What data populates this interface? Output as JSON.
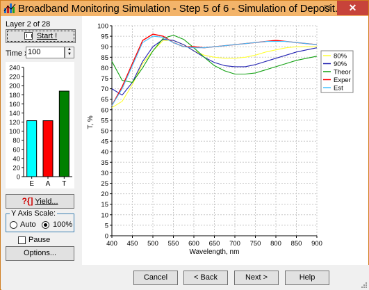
{
  "window": {
    "title": "Broadband Monitoring Simulation - Step 5 of 6 - Simulation of Deposit...",
    "minimize": "–",
    "maximize": "□",
    "close": "✕"
  },
  "left_panel": {
    "layer_label": "Layer 2 of 28",
    "start_button": "Start !",
    "time_label": "Time x",
    "time_value": "100",
    "yield_button": "Yield...",
    "y_axis_scale": {
      "legend": "Y Axis Scale:",
      "options": [
        "Auto",
        "100%"
      ],
      "selected": "100%"
    },
    "pause_label": "Pause",
    "pause_checked": false,
    "options_button": "Options..."
  },
  "bar_chart": {
    "chart_data": {
      "type": "bar",
      "categories": [
        "E",
        "A",
        "T"
      ],
      "values": [
        123,
        123,
        188
      ],
      "colors": [
        "#00ffff",
        "#ff0000",
        "#008000"
      ],
      "ylim": [
        0,
        240
      ],
      "yticks": [
        0,
        20,
        40,
        60,
        80,
        100,
        120,
        140,
        160,
        180,
        200,
        220,
        240
      ],
      "grid": false
    }
  },
  "spectrum_chart": {
    "chart_data": {
      "type": "line",
      "xlabel": "Wavelength, nm",
      "ylabel": "T, %",
      "xlim": [
        400,
        900
      ],
      "ylim": [
        0,
        100
      ],
      "xticks": [
        400,
        450,
        500,
        550,
        600,
        650,
        700,
        750,
        800,
        850,
        900
      ],
      "yticks": [
        0,
        5,
        10,
        15,
        20,
        25,
        30,
        35,
        40,
        45,
        50,
        55,
        60,
        65,
        70,
        75,
        80,
        85,
        90,
        95,
        100
      ],
      "grid": true,
      "legend_position": "right",
      "x": [
        400,
        425,
        450,
        475,
        500,
        525,
        550,
        575,
        600,
        625,
        650,
        675,
        700,
        725,
        750,
        775,
        800,
        825,
        850,
        875,
        900
      ],
      "series": [
        {
          "name": "80%",
          "color": "#ffff33",
          "values": [
            61,
            64,
            72,
            82,
            88,
            93,
            93,
            91,
            88,
            86,
            85,
            84.5,
            84.5,
            85,
            86,
            87.5,
            88.5,
            89.5,
            90,
            90,
            90
          ]
        },
        {
          "name": "90%",
          "color": "#2020b0",
          "values": [
            70,
            67,
            73,
            83,
            90,
            93.5,
            93,
            91,
            88,
            85,
            82.5,
            81,
            80.5,
            80.5,
            81.5,
            83,
            84.5,
            86,
            87.5,
            88.5,
            89.5
          ]
        },
        {
          "name": "Theor",
          "color": "#10a010",
          "values": [
            83,
            74,
            73,
            80,
            88,
            94,
            95.5,
            93.5,
            89.5,
            85,
            81,
            78.5,
            77,
            77,
            77.5,
            79,
            80.5,
            82,
            83.5,
            84.5,
            85.5
          ]
        },
        {
          "name": "Exper",
          "color": "#ff0000",
          "values": [
            62,
            71,
            82,
            93,
            96,
            95,
            92,
            90,
            90,
            89.5,
            90,
            90.5,
            91,
            91.5,
            92,
            92.5,
            93,
            92.5,
            92,
            91.5,
            91
          ]
        },
        {
          "name": "Est",
          "color": "#40c0ff",
          "values": [
            62,
            70,
            81,
            92,
            95,
            94.5,
            92,
            90,
            89.5,
            89.5,
            90,
            90.5,
            91,
            91.5,
            92,
            92.5,
            92.5,
            92.5,
            92,
            91.5,
            91
          ]
        }
      ]
    }
  },
  "bottom_bar": {
    "cancel": "Cancel",
    "back": "< Back",
    "next": "Next >",
    "help": "Help"
  }
}
